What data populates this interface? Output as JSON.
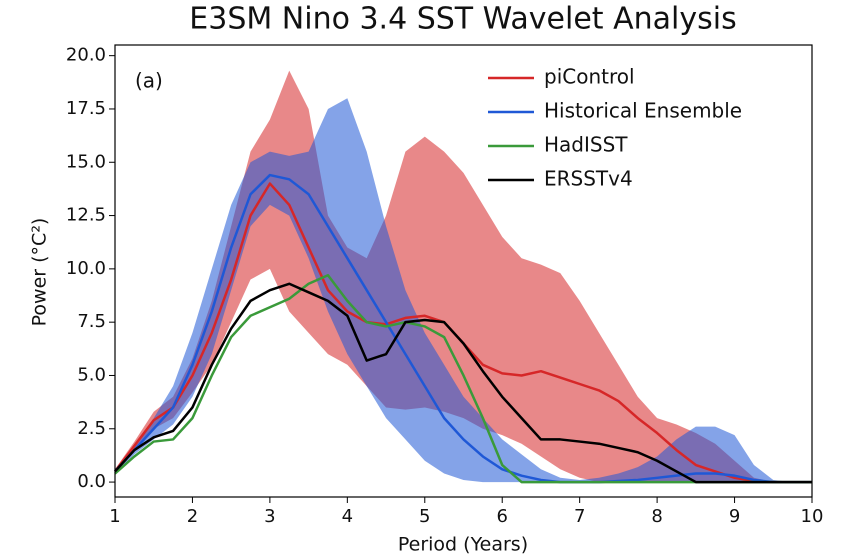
{
  "chart_data": {
    "type": "line",
    "title": "E3SM Nino 3.4 SST Wavelet Analysis",
    "annotation": "(a)",
    "x_label": "Period (Years)",
    "y_label": "Power (°C²)",
    "x": [
      1,
      1.25,
      1.5,
      1.75,
      2,
      2.25,
      2.5,
      2.75,
      3,
      3.25,
      3.5,
      3.75,
      4,
      4.25,
      4.5,
      4.75,
      5,
      5.25,
      5.5,
      5.75,
      6,
      6.25,
      6.5,
      6.75,
      7,
      7.25,
      7.5,
      7.75,
      8,
      8.25,
      8.5,
      8.75,
      9,
      9.25,
      9.5,
      9.75,
      10
    ],
    "series": [
      {
        "name": "piControl",
        "color": "#d62728",
        "values": [
          0.5,
          1.7,
          2.9,
          3.5,
          5.0,
          7.0,
          9.5,
          12.5,
          14.0,
          13.0,
          11.0,
          9.0,
          8.0,
          7.5,
          7.4,
          7.7,
          7.8,
          7.5,
          6.5,
          5.5,
          5.1,
          5.0,
          5.2,
          4.9,
          4.6,
          4.3,
          3.8,
          3.0,
          2.3,
          1.5,
          0.8,
          0.5,
          0.2,
          0.05,
          0,
          0,
          0
        ],
        "upper": [
          0.6,
          1.9,
          3.3,
          4.0,
          5.8,
          8.5,
          12.0,
          15.5,
          17.0,
          19.3,
          17.5,
          12.5,
          11.0,
          10.5,
          12.5,
          15.5,
          16.2,
          15.5,
          14.5,
          13.0,
          11.5,
          10.5,
          10.2,
          9.8,
          8.5,
          7.0,
          5.5,
          4.0,
          3.0,
          2.7,
          2.3,
          1.8,
          1.0,
          0.2,
          0,
          0,
          0
        ],
        "lower": [
          0.4,
          1.5,
          2.5,
          3.0,
          4.2,
          5.5,
          7.5,
          9.5,
          10.0,
          8.0,
          7.0,
          6.0,
          5.5,
          4.5,
          3.5,
          3.4,
          3.5,
          3.3,
          3.0,
          2.5,
          2.2,
          1.8,
          1.2,
          0.6,
          0.2,
          0,
          0,
          0,
          0,
          0,
          0,
          0,
          0,
          0,
          0,
          0,
          0
        ]
      },
      {
        "name": "Historical Ensemble",
        "color": "#1f58d6",
        "values": [
          0.5,
          1.5,
          2.5,
          3.5,
          5.5,
          8.0,
          11.0,
          13.5,
          14.4,
          14.2,
          13.5,
          12.0,
          10.5,
          9.0,
          7.5,
          6.0,
          4.5,
          3.0,
          2.0,
          1.2,
          0.6,
          0.3,
          0.1,
          0,
          0,
          0,
          0.05,
          0.1,
          0.2,
          0.3,
          0.4,
          0.4,
          0.3,
          0.1,
          0,
          0,
          0
        ],
        "upper": [
          0.6,
          1.7,
          3.0,
          4.5,
          7.0,
          10.0,
          13.0,
          15.0,
          15.5,
          15.3,
          15.5,
          17.5,
          18.0,
          15.5,
          12.0,
          9.0,
          7.0,
          5.5,
          4.0,
          3.0,
          2.0,
          1.3,
          0.6,
          0.2,
          0.1,
          0.2,
          0.4,
          0.7,
          1.2,
          2.0,
          2.6,
          2.6,
          2.2,
          0.8,
          0.1,
          0,
          0
        ],
        "lower": [
          0.4,
          1.3,
          2.0,
          2.7,
          4.0,
          6.0,
          9.0,
          12.0,
          13.0,
          12.5,
          10.5,
          8.0,
          6.0,
          4.5,
          3.0,
          2.0,
          1.0,
          0.4,
          0.1,
          0,
          0,
          0,
          0,
          0,
          0,
          0,
          0,
          0,
          0,
          0,
          0,
          0,
          0,
          0,
          0,
          0,
          0
        ]
      },
      {
        "name": "HadISST",
        "color": "#3a9a3a",
        "values": [
          0.4,
          1.2,
          1.9,
          2.0,
          3.0,
          5.0,
          6.8,
          7.8,
          8.2,
          8.6,
          9.3,
          9.7,
          8.5,
          7.5,
          7.3,
          7.5,
          7.3,
          6.8,
          5.0,
          3.0,
          0.8,
          0,
          0,
          0,
          0,
          0,
          0,
          0,
          0,
          0,
          0,
          0,
          0,
          0,
          0,
          0,
          0
        ]
      },
      {
        "name": "ERSSTv4",
        "color": "#000000",
        "values": [
          0.5,
          1.5,
          2.1,
          2.4,
          3.5,
          5.5,
          7.2,
          8.5,
          9.0,
          9.3,
          8.9,
          8.5,
          7.8,
          5.7,
          6.0,
          7.5,
          7.6,
          7.5,
          6.5,
          5.2,
          4.0,
          3.0,
          2.0,
          2.0,
          1.9,
          1.8,
          1.6,
          1.4,
          1.0,
          0.5,
          0,
          0,
          0,
          0,
          0,
          0,
          0
        ]
      }
    ],
    "xlim": [
      1,
      10
    ],
    "ylim": [
      -0.7,
      20.5
    ],
    "xticks": [
      1,
      2,
      3,
      4,
      5,
      6,
      7,
      8,
      9,
      10
    ],
    "yticks": [
      {
        "value": 0,
        "label": "0.0"
      },
      2.5,
      {
        "value": 5,
        "label": "5.0"
      },
      7.5,
      {
        "value": 10,
        "label": "10.0"
      },
      12.5,
      {
        "value": 15,
        "label": "15.0"
      },
      17.5,
      {
        "value": 20,
        "label": "20.0"
      }
    ],
    "legend": "upper right"
  }
}
